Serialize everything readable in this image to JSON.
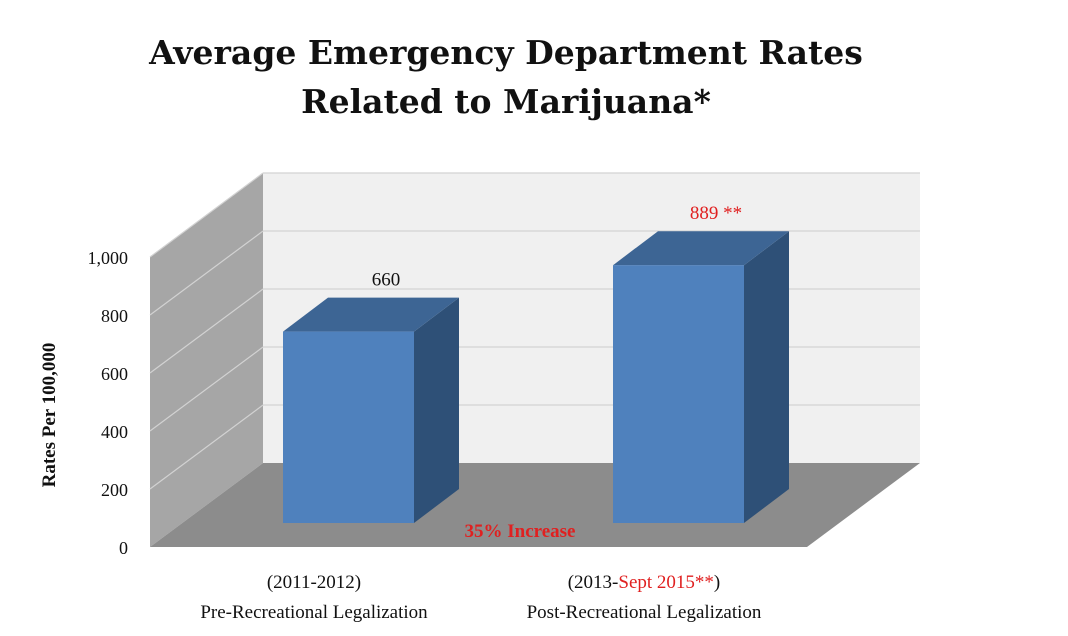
{
  "title_lines": [
    "Average Emergency Department Rates",
    "Related to Marijuana*"
  ],
  "chart_data": {
    "type": "bar",
    "title": "Average Emergency Department Rates Related to Marijuana*",
    "ylabel": "Rates Per 100,000",
    "ylim": [
      0,
      1000
    ],
    "yticks": [
      0,
      200,
      400,
      600,
      800,
      1000
    ],
    "ytick_labels": [
      "0",
      "200",
      "400",
      "600",
      "800",
      "1,000"
    ],
    "grid": true,
    "style": "3d",
    "categories": [
      {
        "period": "(2011-2012)",
        "period_prefix": "(2011-2012)",
        "period_highlight": "",
        "period_suffix": "",
        "label": "Pre-Recreational Legalization"
      },
      {
        "period": "(2013-Sept 2015**)",
        "period_prefix": "(2013-",
        "period_highlight": "Sept 2015**",
        "period_suffix": ")",
        "label": "Post-Recreational Legalization"
      }
    ],
    "values": [
      660,
      889
    ],
    "data_labels": [
      "660",
      "889 **"
    ],
    "annotation": "35% Increase"
  },
  "colors": {
    "bar_front": "#4f81bd",
    "bar_top": "#3d6594",
    "bar_side": "#2e5077",
    "back_wall": "#f0f0f0",
    "side_wall": "#a6a6a6",
    "floor": "#8c8c8c",
    "grid": "#d2d2d2",
    "highlight_red": "#e02020",
    "text": "#111111"
  }
}
